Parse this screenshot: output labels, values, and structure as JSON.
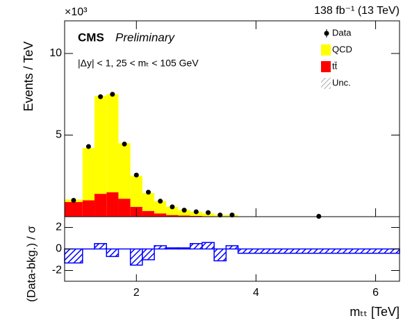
{
  "chart_data": [
    {
      "type": "histogram",
      "y_scale_label": "×10³",
      "lumi_label": "138 fb⁻¹ (13 TeV)",
      "experiment": "CMS",
      "status": "Preliminary",
      "annotation": "|Δy| < 1, 25 < mₜ < 105 GeV",
      "ylabel": "Events / TeV",
      "bins": [
        0.8,
        1.1,
        1.3,
        1.5,
        1.7,
        1.9,
        2.1,
        2.3,
        2.5,
        2.7,
        2.9,
        3.1,
        3.3,
        3.5,
        3.7,
        6.4
      ],
      "ylim": [
        0,
        12
      ],
      "yticks": [
        5,
        10
      ],
      "stacked": true,
      "series": [
        {
          "name": "tt̄",
          "color": "#ff0000",
          "values": [
            0.9,
            1.0,
            1.4,
            1.5,
            1.1,
            0.6,
            0.35,
            0.2,
            0.1,
            0.07,
            0.05,
            0.03,
            0.02,
            0.01,
            0.005
          ]
        },
        {
          "name": "QCD",
          "color": "#ffff00",
          "values": [
            0.15,
            3.2,
            6.0,
            6.0,
            3.4,
            1.9,
            1.1,
            0.75,
            0.5,
            0.33,
            0.25,
            0.17,
            0.08,
            0.09,
            0.015
          ]
        }
      ],
      "data_series": {
        "name": "Data",
        "color": "#000000",
        "values": [
          1.0,
          4.3,
          7.35,
          7.5,
          4.45,
          2.55,
          1.5,
          0.95,
          0.6,
          0.4,
          0.3,
          0.25,
          0.1,
          0.1,
          0.02
        ]
      },
      "uncertainty_legend": "Unc."
    },
    {
      "type": "histogram",
      "ylabel": "(Data-bkg.) / σ",
      "xlabel": "mₜₜ [TeV]",
      "bins": [
        0.8,
        1.1,
        1.3,
        1.5,
        1.7,
        1.9,
        2.1,
        2.3,
        2.5,
        2.7,
        2.9,
        3.1,
        3.3,
        3.5,
        3.7,
        6.4
      ],
      "xlim": [
        0.8,
        6.4
      ],
      "xticks": [
        2,
        4,
        6
      ],
      "ylim": [
        -3,
        3
      ],
      "yticks": [
        -2,
        0,
        2
      ],
      "color": "#0000ff",
      "values": [
        -1.3,
        0.0,
        0.5,
        -0.7,
        0.0,
        -1.5,
        -1.0,
        0.3,
        0.1,
        0.1,
        0.5,
        0.6,
        -1.1,
        0.3,
        -0.4
      ]
    }
  ]
}
